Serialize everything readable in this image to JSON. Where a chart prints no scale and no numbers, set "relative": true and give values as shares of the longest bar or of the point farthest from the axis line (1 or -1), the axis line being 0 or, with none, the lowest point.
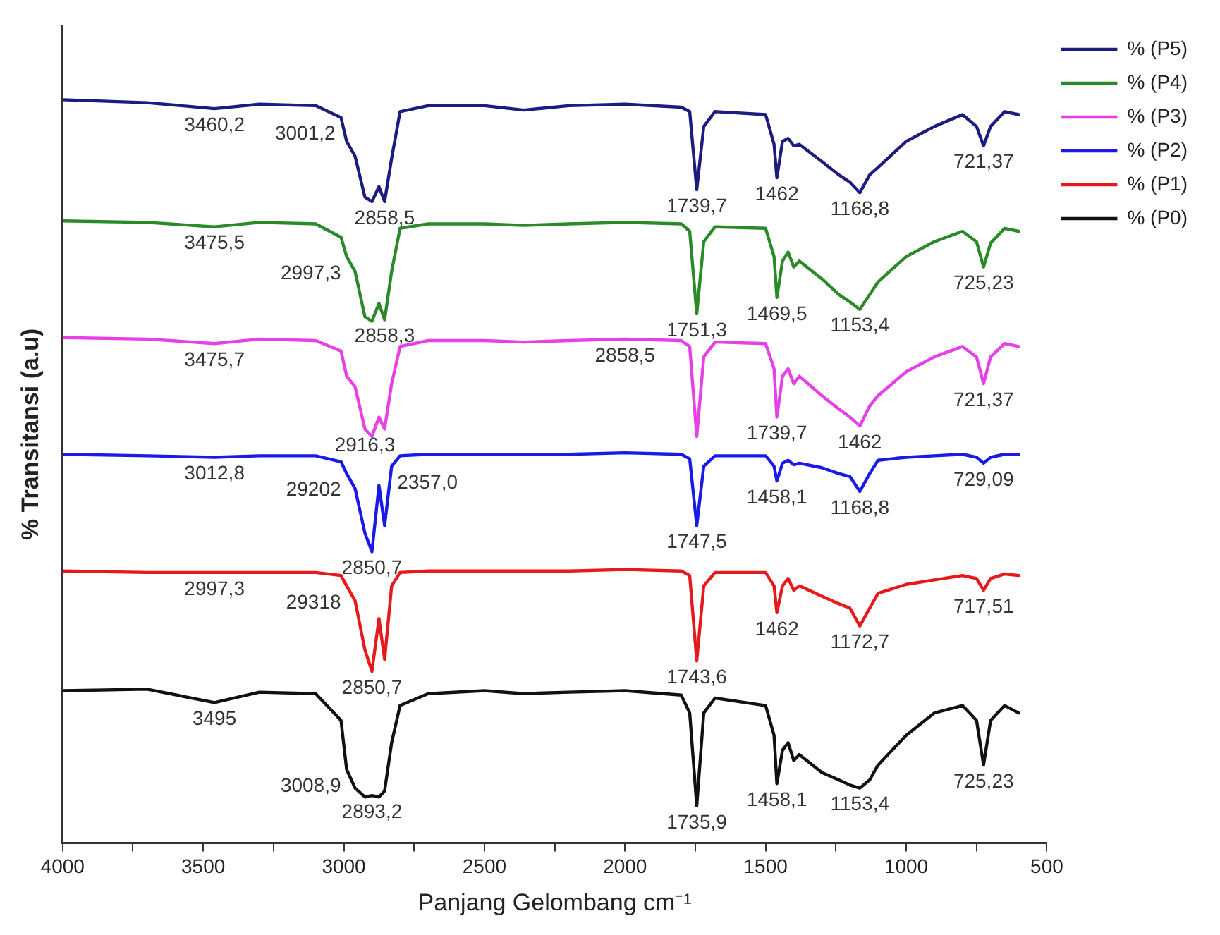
{
  "chart_data": {
    "type": "line",
    "relative": true,
    "xlabel": "Panjang Gelombang cm⁻¹",
    "ylabel": "% Transitansi (a.u)",
    "legend": "top right",
    "marker": "none",
    "line_style": "solid",
    "grid": false,
    "xlim": [
      4000,
      500
    ],
    "xticks": [
      4000,
      {
        "value": 3750,
        "label": null
      },
      3500,
      {
        "value": 3250,
        "label": null
      },
      3000,
      {
        "value": 2750,
        "label": null
      },
      2500,
      {
        "value": 2250,
        "label": null
      },
      2000,
      {
        "value": 1750,
        "label": null
      },
      1500,
      {
        "value": 1250,
        "label": null
      },
      1000,
      {
        "value": 750,
        "label": null
      },
      500
    ],
    "x": [
      4000,
      3700,
      3460,
      3300,
      3100,
      3010,
      2990,
      2960,
      2925,
      2900,
      2875,
      2855,
      2830,
      2800,
      2700,
      2500,
      2360,
      2200,
      2000,
      1800,
      1770,
      1745,
      1720,
      1680,
      1500,
      1470,
      1460,
      1440,
      1420,
      1400,
      1380,
      1300,
      1240,
      1200,
      1165,
      1130,
      1100,
      1000,
      900,
      800,
      750,
      725,
      700,
      650,
      600
    ],
    "series": [
      {
        "name": "% (P5)",
        "color": "#1c1c80",
        "values": [
          1,
          0.996,
          0.988,
          0.994,
          0.992,
          0.976,
          0.944,
          0.924,
          0.869,
          0.863,
          0.883,
          0.863,
          0.921,
          0.984,
          0.992,
          0.992,
          0.986,
          0.992,
          0.994,
          0.99,
          0.984,
          0.879,
          0.964,
          0.984,
          0.98,
          0.94,
          0.895,
          0.944,
          0.948,
          0.938,
          0.94,
          0.917,
          0.899,
          0.889,
          0.875,
          0.899,
          0.909,
          0.944,
          0.964,
          0.98,
          0.964,
          0.938,
          0.964,
          0.984,
          0.98
        ]
      },
      {
        "name": "% (P4)",
        "color": "#2a8a2a",
        "values": [
          0.837,
          0.835,
          0.829,
          0.835,
          0.833,
          0.815,
          0.789,
          0.769,
          0.708,
          0.702,
          0.726,
          0.704,
          0.769,
          0.827,
          0.833,
          0.833,
          0.831,
          0.833,
          0.835,
          0.833,
          0.823,
          0.712,
          0.809,
          0.829,
          0.827,
          0.789,
          0.734,
          0.783,
          0.795,
          0.775,
          0.783,
          0.759,
          0.738,
          0.728,
          0.718,
          0.738,
          0.755,
          0.789,
          0.809,
          0.823,
          0.809,
          0.775,
          0.807,
          0.827,
          0.823
        ]
      },
      {
        "name": "% (P3)",
        "color": "#e640e6",
        "values": [
          0.68,
          0.678,
          0.672,
          0.678,
          0.676,
          0.662,
          0.628,
          0.614,
          0.557,
          0.547,
          0.573,
          0.557,
          0.618,
          0.668,
          0.676,
          0.676,
          0.674,
          0.676,
          0.678,
          0.676,
          0.668,
          0.547,
          0.654,
          0.674,
          0.672,
          0.638,
          0.573,
          0.628,
          0.638,
          0.618,
          0.628,
          0.602,
          0.584,
          0.573,
          0.561,
          0.588,
          0.602,
          0.634,
          0.654,
          0.668,
          0.654,
          0.618,
          0.654,
          0.672,
          0.668
        ]
      },
      {
        "name": "% (P2)",
        "color": "#1a1ae6",
        "values": [
          0.523,
          0.521,
          0.519,
          0.521,
          0.521,
          0.513,
          0.497,
          0.477,
          0.417,
          0.392,
          0.481,
          0.427,
          0.507,
          0.521,
          0.523,
          0.523,
          0.523,
          0.523,
          0.525,
          0.523,
          0.517,
          0.427,
          0.507,
          0.521,
          0.521,
          0.507,
          0.487,
          0.511,
          0.515,
          0.509,
          0.511,
          0.505,
          0.497,
          0.493,
          0.473,
          0.497,
          0.515,
          0.519,
          0.521,
          0.523,
          0.519,
          0.511,
          0.519,
          0.523,
          0.523
        ]
      },
      {
        "name": "% (P1)",
        "color": "#e61a1a",
        "values": [
          0.366,
          0.364,
          0.364,
          0.364,
          0.364,
          0.36,
          0.346,
          0.326,
          0.26,
          0.231,
          0.302,
          0.247,
          0.346,
          0.364,
          0.366,
          0.366,
          0.366,
          0.366,
          0.368,
          0.366,
          0.36,
          0.245,
          0.346,
          0.364,
          0.364,
          0.346,
          0.31,
          0.346,
          0.356,
          0.34,
          0.346,
          0.332,
          0.322,
          0.316,
          0.292,
          0.316,
          0.336,
          0.348,
          0.354,
          0.36,
          0.356,
          0.34,
          0.356,
          0.362,
          0.36
        ]
      },
      {
        "name": "% (P0)",
        "color": "#111111",
        "values": [
          0.205,
          0.207,
          0.189,
          0.203,
          0.201,
          0.165,
          0.099,
          0.074,
          0.062,
          0.064,
          0.062,
          0.07,
          0.135,
          0.185,
          0.201,
          0.205,
          0.201,
          0.203,
          0.205,
          0.199,
          0.175,
          0.05,
          0.175,
          0.195,
          0.185,
          0.145,
          0.08,
          0.125,
          0.135,
          0.111,
          0.119,
          0.095,
          0.085,
          0.078,
          0.074,
          0.085,
          0.105,
          0.145,
          0.175,
          0.185,
          0.165,
          0.105,
          0.165,
          0.185,
          0.175
        ]
      }
    ],
    "annotations": [
      {
        "text": "3460,2",
        "x": 3460,
        "y": 0.988
      },
      {
        "text": "3001,2",
        "x": 3010,
        "y": 0.976
      },
      {
        "text": "2858,5",
        "x": 2855,
        "y": 0.863
      },
      {
        "text": "1739,7",
        "x": 1745,
        "y": 0.879
      },
      {
        "text": "1462",
        "x": 1460,
        "y": 0.895
      },
      {
        "text": "1168,8",
        "x": 1165,
        "y": 0.875
      },
      {
        "text": "721,37",
        "x": 725,
        "y": 0.938
      },
      {
        "text": "3475,5",
        "x": 3460,
        "y": 0.829
      },
      {
        "text": "2997,3",
        "x": 2990,
        "y": 0.789
      },
      {
        "text": "2858,3",
        "x": 2855,
        "y": 0.704
      },
      {
        "text": "1751,3",
        "x": 1745,
        "y": 0.712
      },
      {
        "text": "1469,5",
        "x": 1460,
        "y": 0.734
      },
      {
        "text": "1153,4",
        "x": 1165,
        "y": 0.718
      },
      {
        "text": "725,23",
        "x": 725,
        "y": 0.775
      },
      {
        "text": "3475,7",
        "x": 3460,
        "y": 0.672
      },
      {
        "text": "2916,3",
        "x": 2925,
        "y": 0.557
      },
      {
        "text": "2858,5",
        "x": 2000,
        "y": 0.678
      },
      {
        "text": "1739,7",
        "x": 1460,
        "y": 0.573
      },
      {
        "text": "1462",
        "x": 1165,
        "y": 0.561
      },
      {
        "text": "721,37",
        "x": 725,
        "y": 0.618
      },
      {
        "text": "3012,8",
        "x": 3460,
        "y": 0.519
      },
      {
        "text": "29202",
        "x": 2990,
        "y": 0.497
      },
      {
        "text": "2850,7",
        "x": 2900,
        "y": 0.392
      },
      {
        "text": "2357,0",
        "x": 2830,
        "y": 0.507
      },
      {
        "text": "1747,5",
        "x": 1745,
        "y": 0.427
      },
      {
        "text": "1458,1",
        "x": 1460,
        "y": 0.487
      },
      {
        "text": "1168,8",
        "x": 1165,
        "y": 0.473
      },
      {
        "text": "729,09",
        "x": 725,
        "y": 0.511
      },
      {
        "text": "2997,3",
        "x": 3460,
        "y": 0.364
      },
      {
        "text": "29318",
        "x": 2990,
        "y": 0.346
      },
      {
        "text": "2850,7",
        "x": 2900,
        "y": 0.231
      },
      {
        "text": "1743,6",
        "x": 1745,
        "y": 0.245
      },
      {
        "text": "1462",
        "x": 1460,
        "y": 0.31
      },
      {
        "text": "1172,7",
        "x": 1165,
        "y": 0.292
      },
      {
        "text": "717,51",
        "x": 725,
        "y": 0.34
      },
      {
        "text": "3495",
        "x": 3460,
        "y": 0.189
      },
      {
        "text": "3008,9",
        "x": 2990,
        "y": 0.099
      },
      {
        "text": "2893,2",
        "x": 2900,
        "y": 0.064
      },
      {
        "text": "1735,9",
        "x": 1745,
        "y": 0.05
      },
      {
        "text": "1458,1",
        "x": 1460,
        "y": 0.08
      },
      {
        "text": "1153,4",
        "x": 1165,
        "y": 0.074
      },
      {
        "text": "725,23",
        "x": 725,
        "y": 0.105
      }
    ]
  }
}
